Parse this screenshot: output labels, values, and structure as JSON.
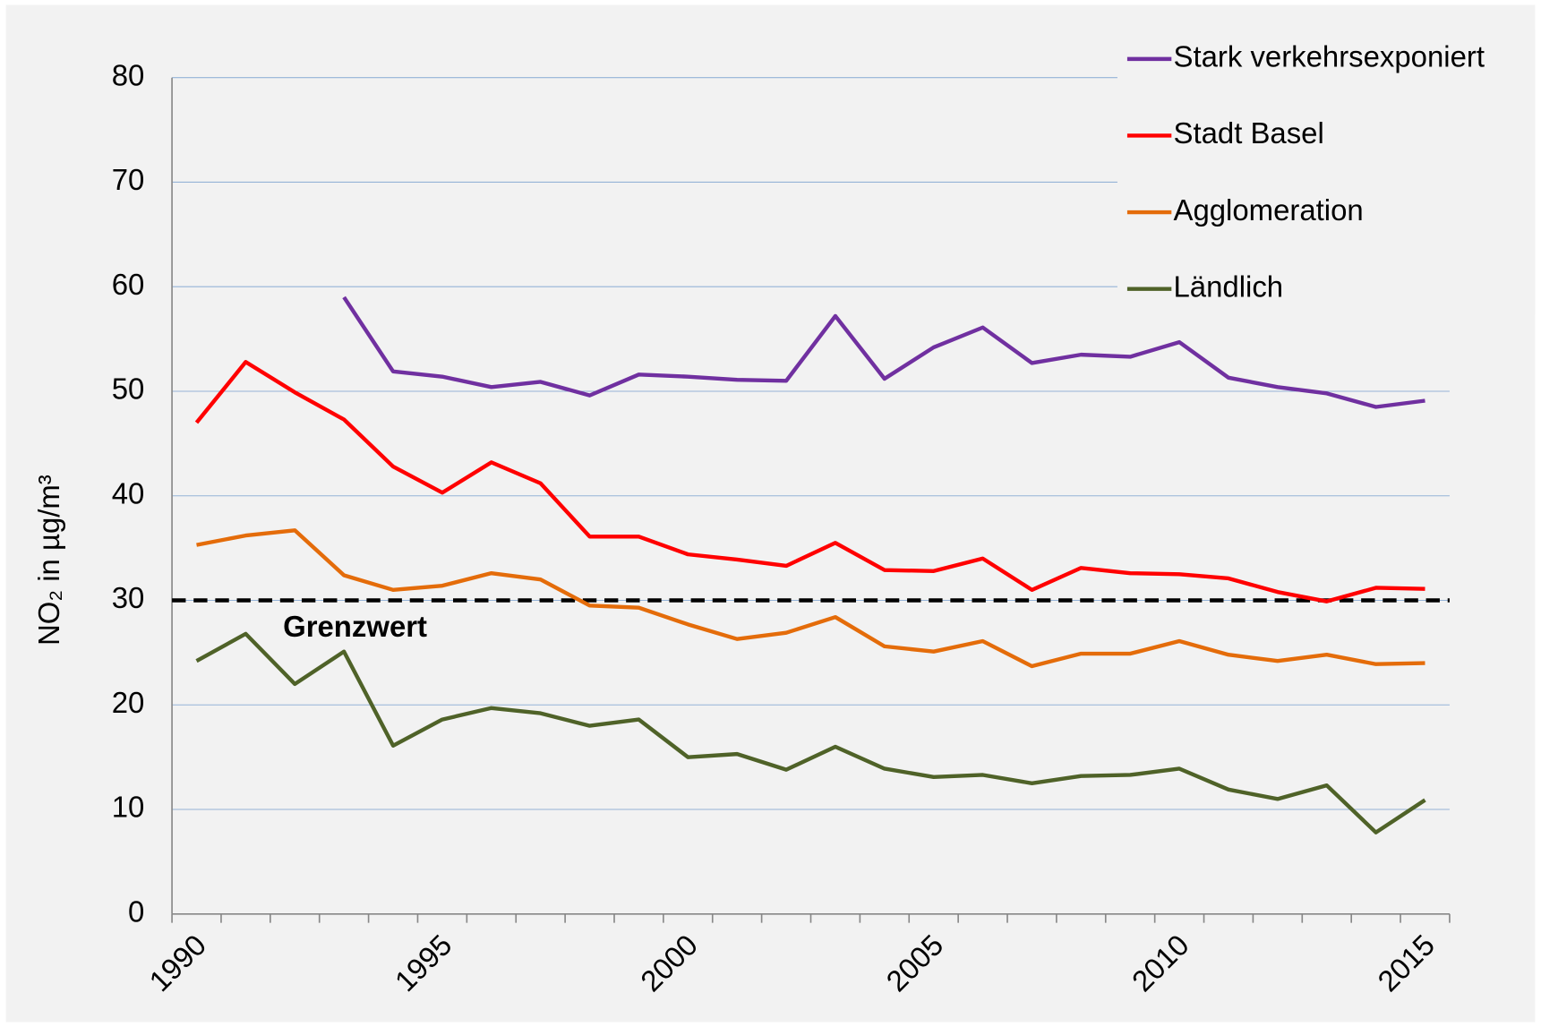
{
  "chart_data": {
    "type": "line",
    "y_label": "NO₂ in µg/m³",
    "categories": [
      "1990",
      null,
      null,
      null,
      null,
      "1995",
      null,
      null,
      null,
      null,
      "2000",
      null,
      null,
      null,
      null,
      "2005",
      null,
      null,
      null,
      null,
      "2010",
      null,
      null,
      null,
      null,
      "2015"
    ],
    "series": [
      {
        "name": "Stark verkehrsexponiert",
        "color": "#7030a0",
        "values": [
          null,
          null,
          null,
          59,
          51.9,
          51.4,
          50.4,
          50.9,
          49.6,
          51.6,
          51.4,
          51.1,
          51,
          57.2,
          51.2,
          54.2,
          56.1,
          52.7,
          53.5,
          53.3,
          54.7,
          51.3,
          50.4,
          49.8,
          48.5,
          49.1
        ]
      },
      {
        "name": "Stadt Basel",
        "color": "#ff0000",
        "values": [
          47,
          52.8,
          49.9,
          47.3,
          42.8,
          40.3,
          43.2,
          41.2,
          36.1,
          36.1,
          34.4,
          33.9,
          33.3,
          35.5,
          32.9,
          32.8,
          34,
          31,
          33.1,
          32.6,
          32.5,
          32.1,
          30.8,
          29.9,
          31.2,
          31.1
        ]
      },
      {
        "name": "Agglomeration",
        "color": "#e46c0a",
        "values": [
          35.3,
          36.2,
          36.7,
          32.4,
          31,
          31.4,
          32.6,
          32,
          29.5,
          29.3,
          27.7,
          26.3,
          26.9,
          28.4,
          25.6,
          25.1,
          26.1,
          23.7,
          24.9,
          24.9,
          26.1,
          24.8,
          24.2,
          24.8,
          23.9,
          24
        ]
      },
      {
        "name": "Ländlich",
        "color": "#4f6228",
        "values": [
          24.2,
          26.8,
          22,
          25.1,
          16.1,
          18.6,
          19.7,
          19.2,
          18,
          18.6,
          15,
          15.3,
          13.8,
          16,
          13.9,
          13.1,
          13.3,
          12.5,
          13.2,
          13.3,
          13.9,
          11.9,
          11,
          12.3,
          7.8,
          10.9
        ]
      }
    ],
    "reference_line": {
      "value": 30,
      "label": "Grenzwert",
      "color": "#000000"
    },
    "ylim": [
      0,
      80
    ],
    "yticks": [
      0,
      10,
      20,
      30,
      40,
      50,
      60,
      70,
      80
    ],
    "grid": true,
    "legend": "top-right"
  }
}
